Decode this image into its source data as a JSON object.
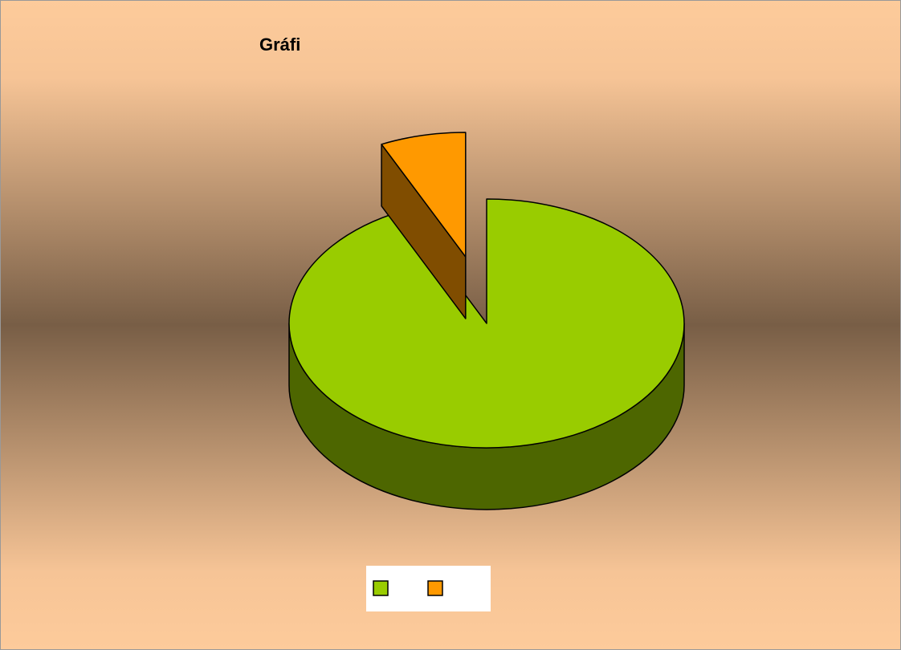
{
  "chart_data": {
    "type": "pie",
    "title": "Gráfi",
    "categories": [
      null,
      null
    ],
    "values": [
      93,
      7
    ],
    "colors": [
      "#99cc00",
      "#ff9900"
    ],
    "legend": "bottom"
  }
}
